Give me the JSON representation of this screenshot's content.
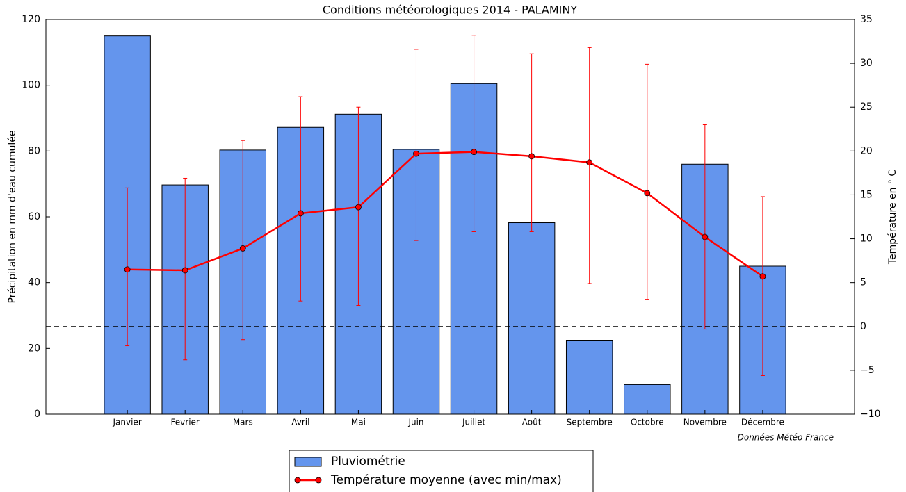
{
  "chart_data": {
    "type": "bar",
    "title": "Conditions météorologiques 2014 - PALAMINY",
    "ylabel": "Précipitation en mm d'eau cumulée",
    "y2label": "Température en ° C",
    "annotation": "Données Météo France",
    "categories": [
      "Janvier",
      "Fevrier",
      "Mars",
      "Avril",
      "Mai",
      "Juin",
      "Juillet",
      "Août",
      "Septembre",
      "Octobre",
      "Novembre",
      "Décembre"
    ],
    "series": [
      {
        "name": "Pluviométrie",
        "type": "bar",
        "color": "#6495ed",
        "values": [
          115,
          69.7,
          80.3,
          87.2,
          91.2,
          80.5,
          100.5,
          58.2,
          22.5,
          9,
          76,
          45
        ]
      },
      {
        "name": "Température moyenne (avec min/max)",
        "type": "line",
        "color": "#ff0000",
        "axis": "y2",
        "values": [
          6.5,
          6.4,
          8.9,
          12.9,
          13.6,
          19.7,
          19.9,
          19.4,
          18.7,
          15.2,
          10.2,
          5.7
        ],
        "min": [
          -2.2,
          -3.8,
          -1.5,
          2.9,
          2.4,
          9.8,
          10.8,
          10.8,
          4.9,
          3.1,
          -0.3,
          -5.6
        ],
        "max": [
          15.8,
          16.9,
          21.2,
          26.2,
          25.0,
          31.6,
          33.2,
          31.1,
          31.8,
          29.9,
          23.0,
          14.8
        ]
      }
    ],
    "ylim": [
      0,
      120
    ],
    "yticks": [
      0,
      20,
      40,
      60,
      80,
      100,
      120
    ],
    "y2lim": [
      -10,
      35
    ],
    "y2ticks": [
      {
        "value": -10,
        "label": "−10"
      },
      {
        "value": -5,
        "label": "−5"
      },
      0,
      5,
      10,
      15,
      20,
      25,
      30,
      35
    ],
    "reference_line": {
      "value": 0,
      "axis": "y2"
    },
    "legend": "bottom"
  }
}
